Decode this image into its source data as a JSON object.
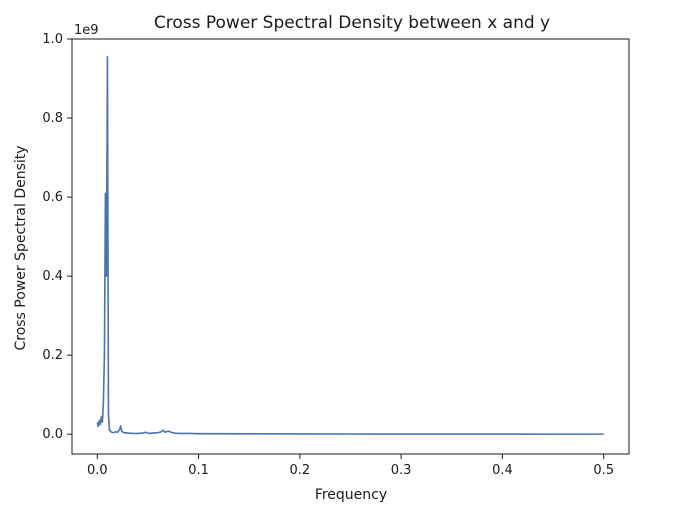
{
  "chart_data": {
    "type": "line",
    "title": "Cross Power Spectral Density between x and y",
    "xlabel": "Frequency",
    "ylabel": "Cross Power Spectral Density",
    "y_offset_label": "1e9",
    "y_scale_factor": 1000000000,
    "xlim": [
      -0.025,
      0.525
    ],
    "ylim": [
      -0.05,
      1.0
    ],
    "x_ticks": [
      0.0,
      0.1,
      0.2,
      0.3,
      0.4,
      0.5
    ],
    "x_tick_labels": [
      "0.0",
      "0.1",
      "0.2",
      "0.3",
      "0.4",
      "0.5"
    ],
    "y_ticks": [
      0.0,
      0.2,
      0.4,
      0.6,
      0.8,
      1.0
    ],
    "y_tick_labels": [
      "0.0",
      "0.2",
      "0.4",
      "0.6",
      "0.8",
      "1.0"
    ],
    "grid": false,
    "legend": "none",
    "series": [
      {
        "color": "#4c72b0",
        "x": [
          0.0,
          0.001,
          0.002,
          0.003,
          0.004,
          0.005,
          0.006,
          0.007,
          0.008,
          0.009,
          0.01,
          0.011,
          0.012,
          0.013,
          0.014,
          0.016,
          0.018,
          0.02,
          0.022,
          0.023,
          0.024,
          0.026,
          0.03,
          0.035,
          0.04,
          0.045,
          0.048,
          0.05,
          0.055,
          0.06,
          0.063,
          0.065,
          0.067,
          0.07,
          0.072,
          0.074,
          0.076,
          0.08,
          0.09,
          0.1,
          0.15,
          0.2,
          0.25,
          0.3,
          0.35,
          0.4,
          0.45,
          0.5
        ],
        "y": [
          0.03,
          0.02,
          0.035,
          0.025,
          0.045,
          0.03,
          0.08,
          0.2,
          0.61,
          0.4,
          0.955,
          0.05,
          0.01,
          0.008,
          0.005,
          0.004,
          0.006,
          0.005,
          0.012,
          0.021,
          0.008,
          0.004,
          0.003,
          0.002,
          0.002,
          0.003,
          0.005,
          0.002,
          0.003,
          0.004,
          0.006,
          0.01,
          0.005,
          0.008,
          0.006,
          0.004,
          0.003,
          0.002,
          0.002,
          0.0015,
          0.001,
          0.0008,
          0.0006,
          0.0005,
          0.0004,
          0.0004,
          0.0003,
          0.0003
        ]
      }
    ]
  }
}
